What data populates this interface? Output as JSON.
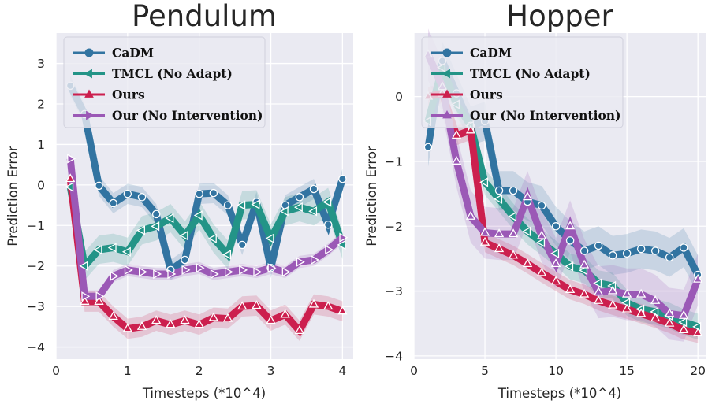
{
  "colors": {
    "background": "#ffffff",
    "plot_background": "#eaeaf2",
    "grid": "#ffffff",
    "CaDM": "#3274a1",
    "TMCL": "#239487",
    "Ours": "#cc1f4e",
    "OurNoInt": "#9b59b6"
  },
  "chart_data": [
    {
      "type": "line",
      "title": "Pendulum",
      "xlabel": "Timesteps (*10^4)",
      "ylabel": "Prediction Error",
      "xlim": [
        0,
        4.15
      ],
      "ylim": [
        -4.3,
        3.75
      ],
      "xticks": [
        "0",
        "1",
        "2",
        "3",
        "4"
      ],
      "xtick_values": [
        0,
        1,
        2,
        3,
        4
      ],
      "yticks": [
        "−4",
        "−3",
        "−2",
        "−1",
        "0",
        "1",
        "2",
        "3"
      ],
      "ytick_values": [
        -4,
        -3,
        -2,
        -1,
        0,
        1,
        2,
        3
      ],
      "grid": true,
      "legend_position": "top-left",
      "x": [
        0.2,
        0.4,
        0.6,
        0.8,
        1.0,
        1.2,
        1.4,
        1.6,
        1.8,
        2.0,
        2.2,
        2.4,
        2.6,
        2.8,
        3.0,
        3.2,
        3.4,
        3.6,
        3.8,
        4.0
      ],
      "series": [
        {
          "name": "CaDM",
          "marker": "circle",
          "values": [
            2.45,
            1.75,
            -0.02,
            -0.45,
            -0.22,
            -0.3,
            -0.72,
            -2.1,
            -1.85,
            -0.22,
            -0.2,
            -0.5,
            -1.48,
            -0.42,
            -2.05,
            -0.5,
            -0.3,
            -0.1,
            -0.98,
            0.15
          ],
          "band": 0.25
        },
        {
          "name": "TMCL (No Adapt)",
          "marker": "triangle-left",
          "values": [
            -0.05,
            -2.0,
            -1.6,
            -1.55,
            -1.65,
            -1.12,
            -1.02,
            -0.82,
            -1.25,
            -0.75,
            -1.32,
            -1.72,
            -0.5,
            -0.48,
            -1.32,
            -0.65,
            -0.55,
            -0.65,
            -0.42,
            -1.48
          ],
          "band": 0.35
        },
        {
          "name": "Ours",
          "marker": "triangle-up",
          "values": [
            0.15,
            -2.88,
            -2.88,
            -3.25,
            -3.55,
            -3.5,
            -3.35,
            -3.45,
            -3.35,
            -3.45,
            -3.28,
            -3.3,
            -3.0,
            -2.98,
            -3.35,
            -3.2,
            -3.6,
            -2.95,
            -3.0,
            -3.12
          ],
          "band": 0.25
        },
        {
          "name": "Our (No Intervention)",
          "marker": "triangle-right",
          "values": [
            0.65,
            -2.75,
            -2.75,
            -2.25,
            -2.1,
            -2.15,
            -2.2,
            -2.2,
            -2.1,
            -2.05,
            -2.2,
            -2.15,
            -2.1,
            -2.15,
            -2.05,
            -2.15,
            -1.9,
            -1.85,
            -1.6,
            -1.3
          ],
          "band": 0.15
        }
      ]
    },
    {
      "type": "line",
      "title": "Hopper",
      "xlabel": "Timesteps (*10^4)",
      "ylabel": "Prediction Error",
      "xlim": [
        0,
        20.6
      ],
      "ylim": [
        -4.05,
        0.98
      ],
      "xticks": [
        "0",
        "5",
        "10",
        "15",
        "20"
      ],
      "xtick_values": [
        0,
        5,
        10,
        15,
        20
      ],
      "yticks": [
        "−4",
        "−3",
        "−2",
        "−1",
        "0"
      ],
      "ytick_values": [
        -4,
        -3,
        -2,
        -1,
        0
      ],
      "grid": true,
      "legend_position": "top-left",
      "x": [
        1,
        2,
        3,
        4,
        5,
        6,
        7,
        8,
        9,
        10,
        11,
        12,
        13,
        14,
        15,
        16,
        17,
        18,
        19,
        20
      ],
      "series": [
        {
          "name": "CaDM",
          "marker": "circle",
          "values": [
            -0.78,
            0.55,
            0.05,
            -0.45,
            -0.38,
            -1.45,
            -1.45,
            -1.62,
            -1.68,
            -2.0,
            -2.22,
            -2.38,
            -2.3,
            -2.45,
            -2.42,
            -2.35,
            -2.38,
            -2.48,
            -2.33,
            -2.75
          ],
          "band": 0.3
        },
        {
          "name": "TMCL (No Adapt)",
          "marker": "triangle-left",
          "values": [
            -0.38,
            0.45,
            -0.12,
            -0.45,
            -1.32,
            -1.58,
            -1.85,
            -2.08,
            -2.25,
            -2.42,
            -2.62,
            -2.68,
            -2.88,
            -2.92,
            -3.18,
            -3.28,
            -3.32,
            -3.38,
            -3.48,
            -3.55
          ],
          "band": 0.2
        },
        {
          "name": "Ours",
          "marker": "triangle-up",
          "values": [
            0.0,
            0.05,
            -0.6,
            -0.52,
            -2.25,
            -2.35,
            -2.45,
            -2.58,
            -2.72,
            -2.85,
            -2.98,
            -3.05,
            -3.15,
            -3.22,
            -3.28,
            -3.35,
            -3.42,
            -3.5,
            -3.6,
            -3.65
          ],
          "band": 0.15
        },
        {
          "name": "Our (No Intervention)",
          "marker": "triangle-up",
          "values": [
            0.65,
            0.15,
            -1.0,
            -1.85,
            -2.1,
            -2.12,
            -2.12,
            -1.55,
            -2.15,
            -2.58,
            -2.0,
            -2.6,
            -3.02,
            -3.0,
            -3.05,
            -3.05,
            -3.15,
            -3.35,
            -3.38,
            -2.82
          ],
          "band": 0.4
        }
      ]
    }
  ]
}
